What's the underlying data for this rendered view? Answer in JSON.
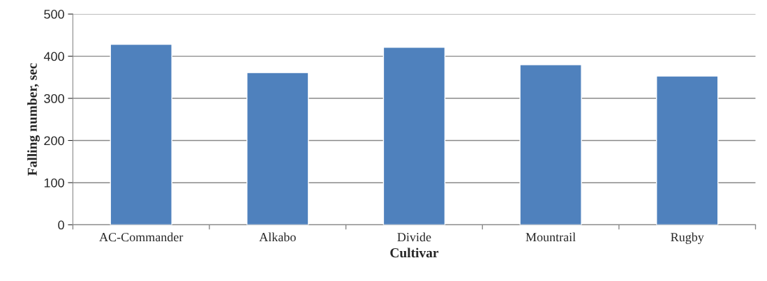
{
  "chart_data": {
    "type": "bar",
    "xlabel": "Cultivar",
    "ylabel": "Falling number, sec",
    "categories": [
      "AC-Commander",
      "Alkabo",
      "Divide",
      "Mountrail",
      "Rugby"
    ],
    "values": [
      428,
      361,
      421,
      380,
      353
    ],
    "color": "#4f81bd",
    "ylim": [
      0,
      500
    ],
    "yticks": [
      0,
      100,
      200,
      300,
      400,
      500
    ],
    "grid": "y",
    "legend": false
  }
}
